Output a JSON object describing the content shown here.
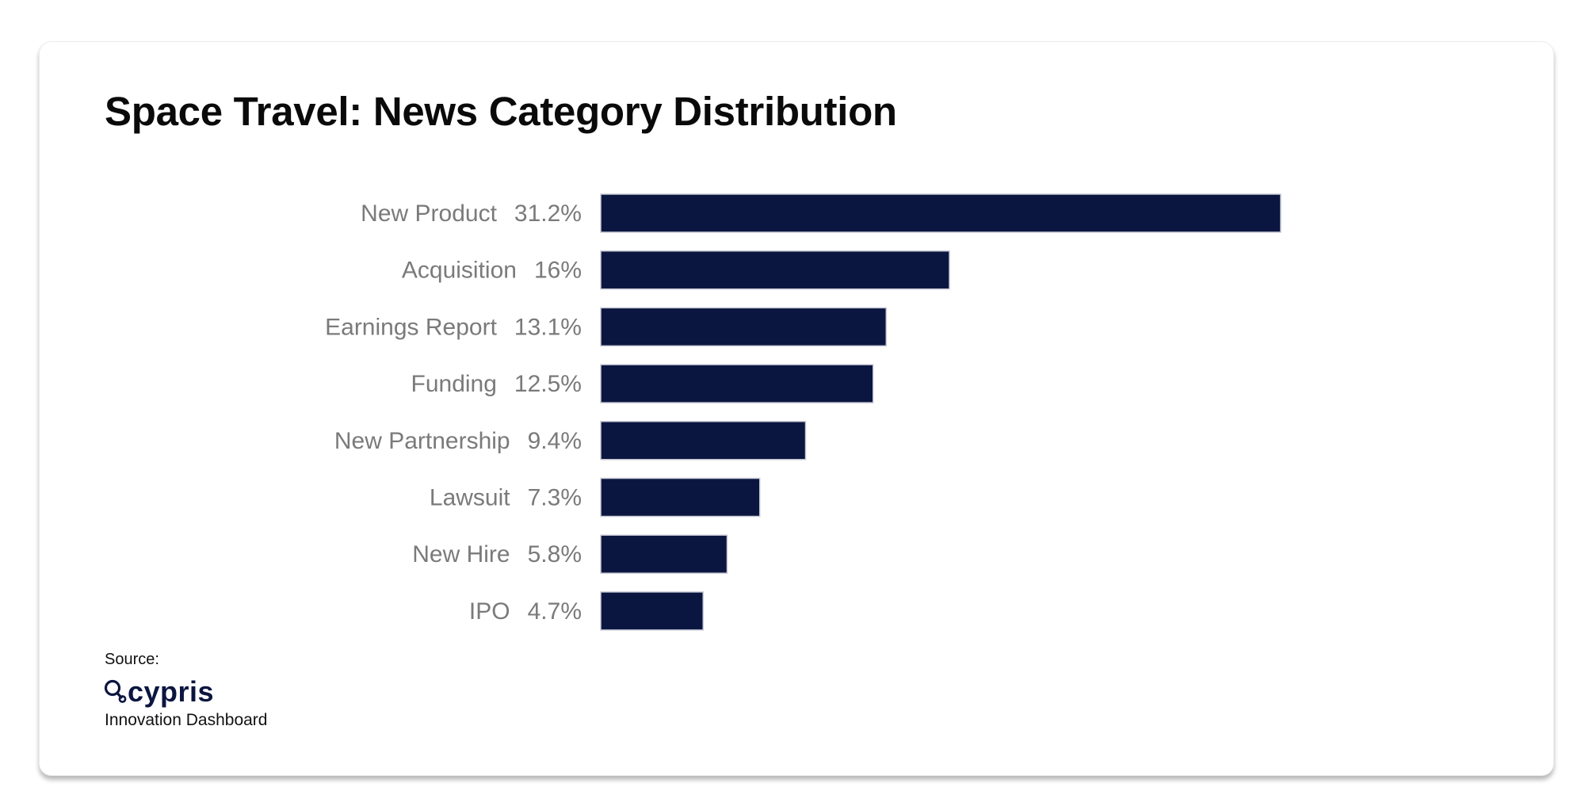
{
  "chart_data": {
    "type": "bar",
    "orientation": "horizontal",
    "title": "Space Travel: News Category Distribution",
    "categories": [
      "New Product",
      "Acquisition",
      "Earnings Report",
      "Funding",
      "New Partnership",
      "Lawsuit",
      "New Hire",
      "IPO"
    ],
    "values": [
      31.2,
      16,
      13.1,
      12.5,
      9.4,
      7.3,
      5.8,
      4.7
    ],
    "value_labels": [
      "31.2%",
      "16%",
      "13.1%",
      "12.5%",
      "9.4%",
      "7.3%",
      "5.8%",
      "4.7%"
    ],
    "xlabel": "",
    "ylabel": "",
    "xlim": [
      0,
      31.2
    ],
    "grid": false,
    "legend": "none",
    "bar_color": "#0b1640"
  },
  "footer": {
    "source_label": "Source:",
    "logo_text": "cypris",
    "source_name": "Innovation Dashboard"
  },
  "icons": {
    "logo": "cypris-magnifier-icon"
  },
  "colors": {
    "brand": "#0b1640",
    "label_gray": "#7a7a7a"
  }
}
